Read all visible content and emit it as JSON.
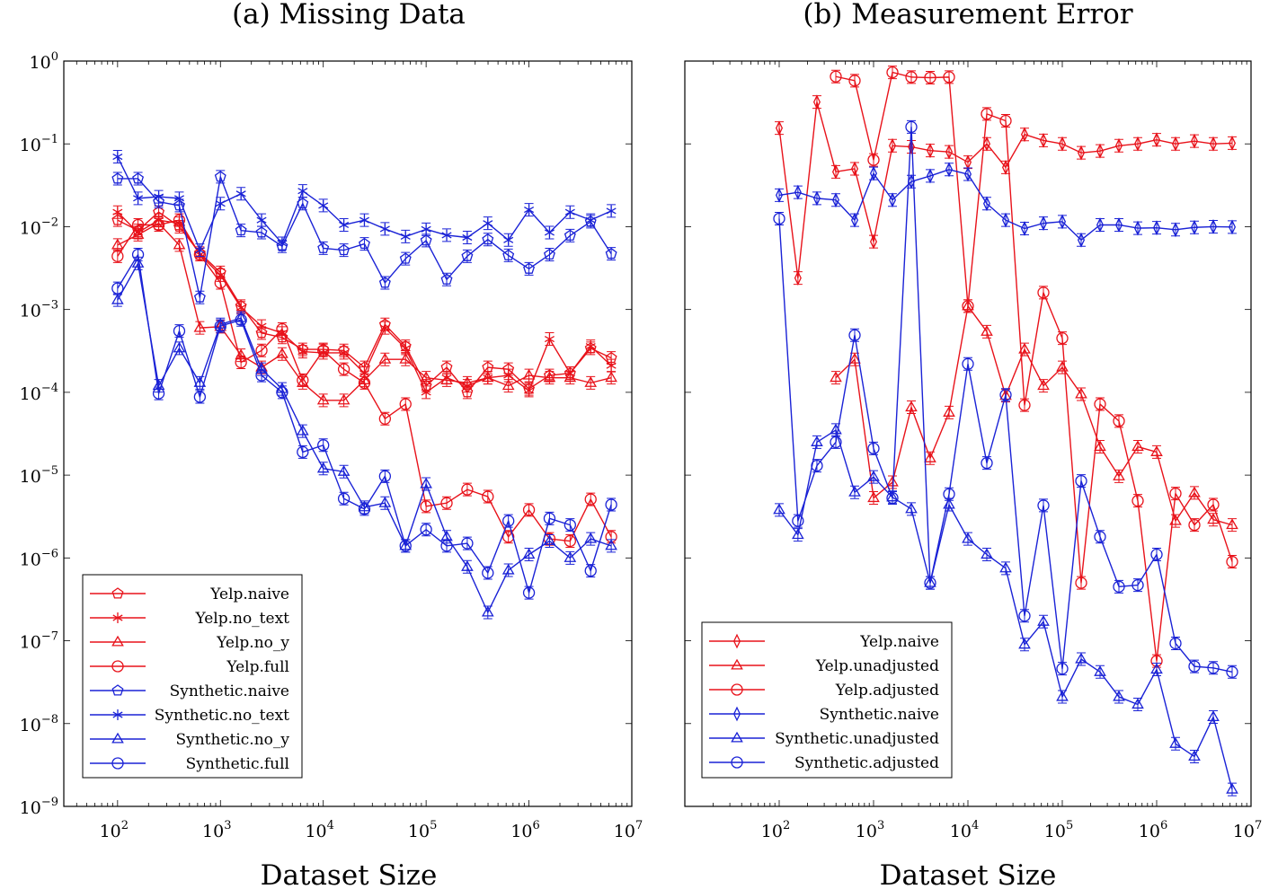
{
  "colors": {
    "red": "#e8121a",
    "blue": "#1a22d6"
  },
  "chart_data": [
    {
      "type": "line",
      "title": "(a) Missing Data",
      "xlabel": "Dataset Size",
      "ylabel": "",
      "xscale": "log",
      "yscale": "log",
      "xlim": [
        30,
        10000000
      ],
      "ylim": [
        1e-09,
        1
      ],
      "x_ticks": [
        {
          "base": "10",
          "exp": "2",
          "value": 100
        },
        {
          "base": "10",
          "exp": "3",
          "value": 1000
        },
        {
          "base": "10",
          "exp": "4",
          "value": 10000
        },
        {
          "base": "10",
          "exp": "5",
          "value": 100000
        },
        {
          "base": "10",
          "exp": "6",
          "value": 1000000
        },
        {
          "base": "10",
          "exp": "7",
          "value": 10000000
        }
      ],
      "y_ticks": [
        {
          "base": "10",
          "exp": "−9",
          "value": 1e-09
        },
        {
          "base": "10",
          "exp": "−8",
          "value": 1e-08
        },
        {
          "base": "10",
          "exp": "−7",
          "value": 1e-07
        },
        {
          "base": "10",
          "exp": "−6",
          "value": 1e-06
        },
        {
          "base": "10",
          "exp": "−5",
          "value": 1e-05
        },
        {
          "base": "10",
          "exp": "−4",
          "value": 0.0001
        },
        {
          "base": "10",
          "exp": "−3",
          "value": 0.001
        },
        {
          "base": "10",
          "exp": "−2",
          "value": 0.01
        },
        {
          "base": "10",
          "exp": "−1",
          "value": 0.1
        },
        {
          "base": "10",
          "exp": "0",
          "value": 1
        }
      ],
      "legend": "bottom-left",
      "x": [
        100,
        158,
        251,
        398,
        631,
        1000,
        1585,
        2512,
        3981,
        6310,
        10000,
        15849,
        25119,
        39811,
        63096,
        100000,
        158489,
        251189,
        398107,
        630957,
        1000000,
        1584893,
        2511886,
        3981072,
        6309573
      ],
      "series": [
        {
          "name": "Yelp.naive",
          "color": "red",
          "marker": "pentagon",
          "values": [
            0.012,
            0.009,
            0.015,
            0.01,
            0.0048,
            0.0028,
            0.0011,
            0.00052,
            0.00046,
            0.00033,
            0.00033,
            0.00032,
            0.0002,
            0.00066,
            0.00036,
            0.00012,
            0.0002,
            0.0001,
            0.0002,
            0.00019,
            0.00011,
            0.00016,
            0.00017,
            0.00034,
            0.00026
          ]
        },
        {
          "name": "Yelp.no_text",
          "color": "red",
          "marker": "star",
          "values": [
            0.015,
            0.0085,
            0.012,
            0.011,
            0.0046,
            0.0026,
            0.00105,
            0.00063,
            0.00052,
            0.00031,
            0.0003,
            0.0003,
            0.00017,
            0.0006,
            0.00034,
            0.0001,
            0.00015,
            0.00012,
            0.00015,
            0.00016,
            0.000105,
            0.00044,
            0.00017,
            0.00036,
            0.00021
          ]
        },
        {
          "name": "Yelp.no_y",
          "color": "red",
          "marker": "triangle",
          "values": [
            0.006,
            0.008,
            0.011,
            0.006,
            0.0006,
            0.00062,
            0.00028,
            0.0002,
            0.00029,
            0.00013,
            8e-05,
            8e-05,
            0.00014,
            0.00025,
            0.00025,
            0.00015,
            0.00014,
            0.00013,
            0.00015,
            0.00012,
            0.00016,
            0.00015,
            0.00015,
            0.00013,
            0.00015
          ]
        },
        {
          "name": "Yelp.full",
          "color": "red",
          "marker": "circle",
          "values": [
            0.0044,
            0.0105,
            0.0105,
            0.012,
            0.0046,
            0.0021,
            0.00023,
            0.00032,
            0.00058,
            0.00014,
            0.00032,
            0.00019,
            0.00013,
            4.8e-05,
            7.2e-05,
            4.2e-06,
            4.6e-06,
            6.7e-06,
            5.5e-06,
            1.8e-06,
            3.8e-06,
            1.7e-06,
            1.6e-06,
            5.1e-06,
            1.8e-06
          ]
        },
        {
          "name": "Synthetic.naive",
          "color": "blue",
          "marker": "pentagon",
          "values": [
            0.038,
            0.038,
            0.02,
            0.018,
            0.0014,
            0.04,
            0.009,
            0.0085,
            0.0058,
            0.019,
            0.0055,
            0.0052,
            0.0062,
            0.0021,
            0.0041,
            0.0068,
            0.0023,
            0.0044,
            0.007,
            0.0045,
            0.0031,
            0.0046,
            0.0078,
            0.0115,
            0.0047
          ]
        },
        {
          "name": "Synthetic.no_text",
          "color": "blue",
          "marker": "star",
          "values": [
            0.07,
            0.022,
            0.023,
            0.022,
            0.0052,
            0.019,
            0.025,
            0.012,
            0.0063,
            0.027,
            0.018,
            0.0105,
            0.012,
            0.0094,
            0.0076,
            0.0093,
            0.0079,
            0.0074,
            0.011,
            0.0069,
            0.016,
            0.0085,
            0.015,
            0.012,
            0.0155
          ]
        },
        {
          "name": "Synthetic.no_y",
          "color": "blue",
          "marker": "triangle",
          "values": [
            0.0013,
            0.0036,
            0.00012,
            0.00034,
            0.00013,
            0.00066,
            0.00079,
            0.00019,
            0.00011,
            3.4e-05,
            1.2e-05,
            1.1e-05,
            4.1e-06,
            4.6e-06,
            1.4e-06,
            7.8e-06,
            1.8e-06,
            7.8e-07,
            2.2e-07,
            7.1e-07,
            1.1e-06,
            1.6e-06,
            1e-06,
            1.7e-06,
            1.4e-06
          ]
        },
        {
          "name": "Synthetic.full",
          "color": "blue",
          "marker": "circle",
          "values": [
            0.0018,
            0.0046,
            9.7e-05,
            0.00055,
            8.8e-05,
            0.00063,
            0.00075,
            0.00016,
            0.0001,
            1.9e-05,
            2.3e-05,
            5.2e-06,
            3.9e-06,
            9.7e-06,
            1.4e-06,
            2.2e-06,
            1.4e-06,
            1.5e-06,
            6.6e-07,
            2.8e-06,
            3.8e-07,
            3e-06,
            2.5e-06,
            7e-07,
            4.4e-06
          ]
        }
      ]
    },
    {
      "type": "line",
      "title": "(b) Measurement Error",
      "xlabel": "Dataset Size",
      "ylabel": "",
      "xscale": "log",
      "yscale": "log",
      "xlim": [
        10,
        10000000
      ],
      "ylim": [
        1e-09,
        1
      ],
      "x_ticks": [
        {
          "base": "10",
          "exp": "2",
          "value": 100
        },
        {
          "base": "10",
          "exp": "3",
          "value": 1000
        },
        {
          "base": "10",
          "exp": "4",
          "value": 10000
        },
        {
          "base": "10",
          "exp": "5",
          "value": 100000
        },
        {
          "base": "10",
          "exp": "6",
          "value": 1000000
        },
        {
          "base": "10",
          "exp": "7",
          "value": 10000000
        }
      ],
      "legend": "bottom-left",
      "x": [
        100,
        158,
        251,
        398,
        631,
        1000,
        1585,
        2512,
        3981,
        6310,
        10000,
        15849,
        25119,
        39811,
        63096,
        100000,
        158489,
        251189,
        398107,
        630957,
        1000000,
        1584893,
        2511886,
        3981072,
        6309573
      ],
      "series": [
        {
          "name": "Yelp.naive",
          "color": "red",
          "marker": "diamond",
          "values": [
            0.155,
            0.0024,
            0.32,
            0.046,
            0.05,
            0.0066,
            0.095,
            0.092,
            0.083,
            0.08,
            0.06,
            0.1,
            0.052,
            0.13,
            0.11,
            0.1,
            0.078,
            0.082,
            0.095,
            0.1,
            0.112,
            0.1,
            0.108,
            0.1,
            0.102
          ]
        },
        {
          "name": "Yelp.unadjusted",
          "color": "red",
          "marker": "triangle",
          "values": [
            null,
            null,
            null,
            0.00015,
            0.00025,
            5.3e-06,
            8.2e-06,
            6.6e-05,
            1.6e-05,
            5.7e-05,
            0.0011,
            0.00054,
            9.1e-05,
            0.00033,
            0.00012,
            0.0002,
            9.5e-05,
            2.2e-05,
            9.7e-06,
            2.2e-05,
            1.9e-05,
            2.8e-06,
            6.1e-06,
            2.9e-06,
            2.5e-06
          ]
        },
        {
          "name": "Yelp.adjusted",
          "color": "red",
          "marker": "circle",
          "values": [
            null,
            null,
            null,
            0.65,
            0.58,
            0.064,
            0.73,
            0.64,
            0.63,
            0.64,
            0.0011,
            0.23,
            0.19,
            7e-05,
            0.0016,
            0.00045,
            5e-07,
            7.2e-05,
            4.5e-05,
            4.9e-06,
            5.7e-08,
            6e-06,
            2.5e-06,
            4.4e-06,
            9e-07
          ]
        },
        {
          "name": "Synthetic.naive",
          "color": "blue",
          "marker": "diamond",
          "values": [
            0.024,
            0.026,
            0.022,
            0.021,
            0.012,
            0.044,
            0.021,
            0.035,
            0.041,
            0.049,
            0.043,
            0.019,
            0.012,
            0.0095,
            0.011,
            0.0115,
            0.0069,
            0.0105,
            0.0105,
            0.0096,
            0.0097,
            0.0092,
            0.0098,
            0.01,
            0.0099
          ]
        },
        {
          "name": "Synthetic.unadjusted",
          "color": "blue",
          "marker": "triangle",
          "values": [
            3.8e-06,
            1.9e-06,
            2.5e-05,
            3.5e-05,
            6.2e-06,
            9.5e-06,
            5.4e-06,
            3.9e-06,
            5e-07,
            4.4e-06,
            1.7e-06,
            1.1e-06,
            7.5e-07,
            9e-08,
            1.7e-07,
            2.1e-08,
            6e-08,
            4.2e-08,
            2.1e-08,
            1.7e-08,
            4.5e-08,
            5.7e-09,
            4e-09,
            1.2e-08,
            1.6e-09
          ]
        },
        {
          "name": "Synthetic.adjusted",
          "color": "blue",
          "marker": "circle",
          "values": [
            0.0125,
            2.8e-06,
            1.3e-05,
            2.5e-05,
            0.00049,
            2.1e-05,
            5.3e-06,
            0.16,
            5e-07,
            5.9e-06,
            0.00022,
            1.4e-05,
            9.3e-05,
            2e-07,
            4.3e-06,
            4.6e-08,
            8.5e-06,
            1.8e-06,
            4.5e-07,
            4.7e-07,
            1.1e-06,
            9.3e-08,
            4.9e-08,
            4.7e-08,
            4.2e-08
          ]
        }
      ]
    }
  ]
}
